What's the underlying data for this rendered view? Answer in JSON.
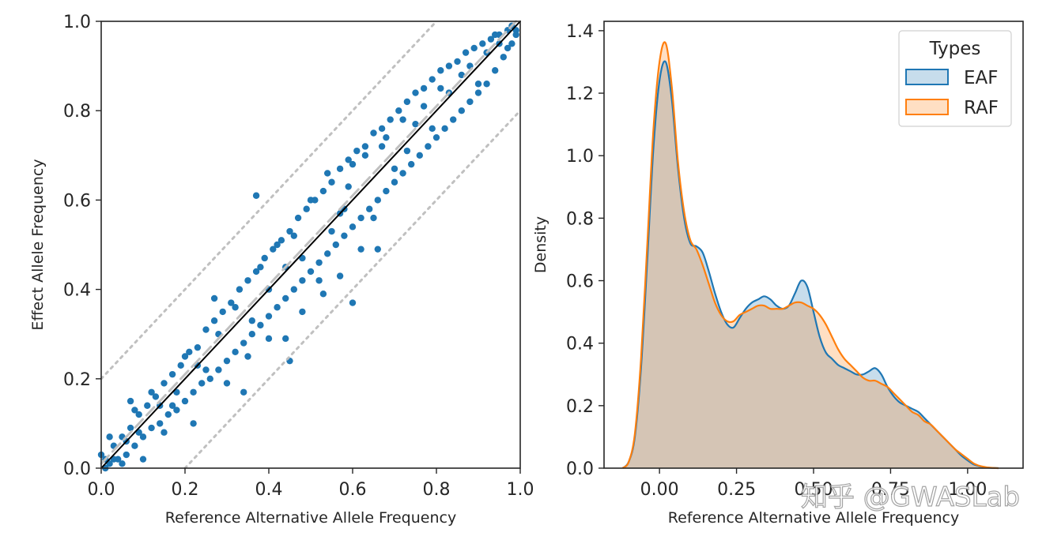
{
  "watermark": "知乎 @GWASLab",
  "colors": {
    "eaf": "#1f77b4",
    "raf": "#ff7f0e",
    "overlap": "#c3c0b9"
  },
  "chart_data": [
    {
      "type": "scatter",
      "xlabel": "Reference Alternative Allele Frequency",
      "ylabel": "Effect Allele Frequency",
      "xlim": [
        0,
        1
      ],
      "ylim": [
        0,
        1
      ],
      "xticks": [
        "0.0",
        "0.2",
        "0.4",
        "0.6",
        "0.8",
        "1.0"
      ],
      "yticks": [
        "0.0",
        "0.2",
        "0.4",
        "0.6",
        "0.8",
        "1.0"
      ],
      "grid": false,
      "reference_lines": [
        {
          "kind": "identity",
          "slope": 1,
          "intercept": 0,
          "style": "solid",
          "color": "#000000"
        },
        {
          "kind": "fit",
          "slope": 1,
          "intercept": 0.01,
          "style": "dashed",
          "color": "#c0c0c0"
        },
        {
          "kind": "upper-bound",
          "slope": 1,
          "intercept": 0.2,
          "style": "dotted",
          "color": "#c0c0c0"
        },
        {
          "kind": "lower-bound",
          "slope": 1,
          "intercept": -0.2,
          "style": "dotted",
          "color": "#c0c0c0"
        }
      ],
      "points": [
        [
          0.01,
          0.02
        ],
        [
          0.02,
          0.01
        ],
        [
          0.03,
          0.05
        ],
        [
          0.04,
          0.02
        ],
        [
          0.05,
          0.07
        ],
        [
          0.06,
          0.03
        ],
        [
          0.07,
          0.09
        ],
        [
          0.08,
          0.05
        ],
        [
          0.09,
          0.12
        ],
        [
          0.1,
          0.07
        ],
        [
          0.11,
          0.14
        ],
        [
          0.12,
          0.09
        ],
        [
          0.13,
          0.16
        ],
        [
          0.14,
          0.1
        ],
        [
          0.15,
          0.19
        ],
        [
          0.16,
          0.12
        ],
        [
          0.17,
          0.21
        ],
        [
          0.18,
          0.13
        ],
        [
          0.19,
          0.23
        ],
        [
          0.2,
          0.15
        ],
        [
          0.21,
          0.26
        ],
        [
          0.22,
          0.17
        ],
        [
          0.23,
          0.27
        ],
        [
          0.24,
          0.19
        ],
        [
          0.25,
          0.31
        ],
        [
          0.26,
          0.2
        ],
        [
          0.27,
          0.33
        ],
        [
          0.28,
          0.22
        ],
        [
          0.29,
          0.35
        ],
        [
          0.3,
          0.24
        ],
        [
          0.31,
          0.37
        ],
        [
          0.32,
          0.26
        ],
        [
          0.33,
          0.4
        ],
        [
          0.34,
          0.28
        ],
        [
          0.35,
          0.42
        ],
        [
          0.36,
          0.3
        ],
        [
          0.37,
          0.44
        ],
        [
          0.38,
          0.32
        ],
        [
          0.39,
          0.47
        ],
        [
          0.4,
          0.34
        ],
        [
          0.41,
          0.49
        ],
        [
          0.42,
          0.36
        ],
        [
          0.43,
          0.51
        ],
        [
          0.44,
          0.38
        ],
        [
          0.45,
          0.53
        ],
        [
          0.46,
          0.4
        ],
        [
          0.47,
          0.56
        ],
        [
          0.48,
          0.42
        ],
        [
          0.49,
          0.58
        ],
        [
          0.5,
          0.44
        ],
        [
          0.51,
          0.6
        ],
        [
          0.52,
          0.46
        ],
        [
          0.53,
          0.62
        ],
        [
          0.54,
          0.48
        ],
        [
          0.55,
          0.64
        ],
        [
          0.56,
          0.5
        ],
        [
          0.57,
          0.67
        ],
        [
          0.58,
          0.52
        ],
        [
          0.59,
          0.69
        ],
        [
          0.6,
          0.54
        ],
        [
          0.61,
          0.71
        ],
        [
          0.62,
          0.56
        ],
        [
          0.63,
          0.72
        ],
        [
          0.64,
          0.58
        ],
        [
          0.65,
          0.75
        ],
        [
          0.66,
          0.6
        ],
        [
          0.67,
          0.76
        ],
        [
          0.68,
          0.62
        ],
        [
          0.69,
          0.78
        ],
        [
          0.7,
          0.64
        ],
        [
          0.71,
          0.8
        ],
        [
          0.72,
          0.66
        ],
        [
          0.73,
          0.82
        ],
        [
          0.74,
          0.68
        ],
        [
          0.75,
          0.84
        ],
        [
          0.76,
          0.7
        ],
        [
          0.77,
          0.85
        ],
        [
          0.78,
          0.72
        ],
        [
          0.79,
          0.87
        ],
        [
          0.8,
          0.74
        ],
        [
          0.81,
          0.89
        ],
        [
          0.82,
          0.76
        ],
        [
          0.83,
          0.9
        ],
        [
          0.84,
          0.78
        ],
        [
          0.85,
          0.91
        ],
        [
          0.86,
          0.8
        ],
        [
          0.87,
          0.93
        ],
        [
          0.88,
          0.82
        ],
        [
          0.89,
          0.94
        ],
        [
          0.9,
          0.84
        ],
        [
          0.91,
          0.95
        ],
        [
          0.92,
          0.86
        ],
        [
          0.93,
          0.96
        ],
        [
          0.94,
          0.89
        ],
        [
          0.95,
          0.97
        ],
        [
          0.96,
          0.92
        ],
        [
          0.97,
          0.98
        ],
        [
          0.98,
          0.95
        ],
        [
          0.99,
          0.98
        ],
        [
          0.94,
          0.97
        ],
        [
          0.02,
          0.07
        ],
        [
          0.05,
          0.01
        ],
        [
          0.08,
          0.13
        ],
        [
          0.1,
          0.02
        ],
        [
          0.12,
          0.17
        ],
        [
          0.15,
          0.08
        ],
        [
          0.17,
          0.14
        ],
        [
          0.2,
          0.25
        ],
        [
          0.22,
          0.1
        ],
        [
          0.25,
          0.22
        ],
        [
          0.27,
          0.38
        ],
        [
          0.3,
          0.19
        ],
        [
          0.32,
          0.36
        ],
        [
          0.35,
          0.25
        ],
        [
          0.37,
          0.61
        ],
        [
          0.38,
          0.45
        ],
        [
          0.4,
          0.29
        ],
        [
          0.42,
          0.5
        ],
        [
          0.44,
          0.45
        ],
        [
          0.46,
          0.52
        ],
        [
          0.48,
          0.47
        ],
        [
          0.5,
          0.6
        ],
        [
          0.52,
          0.42
        ],
        [
          0.54,
          0.66
        ],
        [
          0.55,
          0.53
        ],
        [
          0.57,
          0.57
        ],
        [
          0.59,
          0.63
        ],
        [
          0.6,
          0.68
        ],
        [
          0.62,
          0.49
        ],
        [
          0.63,
          0.7
        ],
        [
          0.65,
          0.56
        ],
        [
          0.67,
          0.72
        ],
        [
          0.68,
          0.74
        ],
        [
          0.7,
          0.67
        ],
        [
          0.72,
          0.78
        ],
        [
          0.73,
          0.71
        ],
        [
          0.75,
          0.77
        ],
        [
          0.77,
          0.81
        ],
        [
          0.79,
          0.76
        ],
        [
          0.81,
          0.85
        ],
        [
          0.83,
          0.84
        ],
        [
          0.86,
          0.88
        ],
        [
          0.88,
          0.9
        ],
        [
          0.9,
          0.86
        ],
        [
          0.92,
          0.93
        ],
        [
          0.95,
          0.95
        ],
        [
          0.97,
          0.94
        ],
        [
          0.98,
          0.99
        ],
        [
          0.99,
          0.97
        ],
        [
          0.4,
          0.4
        ],
        [
          0.36,
          0.33
        ],
        [
          0.44,
          0.29
        ],
        [
          0.57,
          0.43
        ],
        [
          0.6,
          0.37
        ],
        [
          0.48,
          0.35
        ],
        [
          0.53,
          0.39
        ],
        [
          0.66,
          0.49
        ],
        [
          0.45,
          0.24
        ],
        [
          0.34,
          0.17
        ],
        [
          0.58,
          0.58
        ],
        [
          0.28,
          0.3
        ],
        [
          0.23,
          0.23
        ],
        [
          0.18,
          0.17
        ],
        [
          0.14,
          0.14
        ],
        [
          0.09,
          0.08
        ],
        [
          0.06,
          0.06
        ],
        [
          0.03,
          0.02
        ],
        [
          0.01,
          0.0
        ],
        [
          0.0,
          0.03
        ],
        [
          0.07,
          0.15
        ]
      ]
    },
    {
      "type": "area",
      "xlabel": "Reference Alternative Allele Frequency",
      "ylabel": "Density",
      "xlim": [
        -0.18,
        1.18
      ],
      "ylim": [
        0,
        1.43
      ],
      "xticks": [
        "0.00",
        "0.25",
        "0.50",
        "0.75",
        "1.00"
      ],
      "xtick_values": [
        0,
        0.25,
        0.5,
        0.75,
        1.0
      ],
      "yticks": [
        "0.0",
        "0.2",
        "0.4",
        "0.6",
        "0.8",
        "1.0",
        "1.2",
        "1.4"
      ],
      "ytick_values": [
        0,
        0.2,
        0.4,
        0.6,
        0.8,
        1.0,
        1.2,
        1.4
      ],
      "grid": false,
      "legend": {
        "title": "Types",
        "placement": "top-right"
      },
      "series": [
        {
          "name": "EAF",
          "x": [
            -0.12,
            -0.1,
            -0.08,
            -0.06,
            -0.04,
            -0.02,
            0.0,
            0.02,
            0.04,
            0.06,
            0.08,
            0.1,
            0.12,
            0.14,
            0.16,
            0.18,
            0.2,
            0.22,
            0.24,
            0.26,
            0.28,
            0.3,
            0.32,
            0.34,
            0.36,
            0.38,
            0.4,
            0.42,
            0.44,
            0.46,
            0.48,
            0.5,
            0.52,
            0.54,
            0.56,
            0.58,
            0.6,
            0.62,
            0.64,
            0.66,
            0.68,
            0.7,
            0.72,
            0.74,
            0.76,
            0.78,
            0.8,
            0.82,
            0.84,
            0.86,
            0.88,
            0.9,
            0.92,
            0.94,
            0.96,
            0.98,
            1.0,
            1.02,
            1.04,
            1.06,
            1.08,
            1.1
          ],
          "values": [
            0.0,
            0.02,
            0.1,
            0.32,
            0.66,
            1.02,
            1.24,
            1.3,
            1.18,
            0.96,
            0.8,
            0.72,
            0.71,
            0.69,
            0.63,
            0.56,
            0.5,
            0.46,
            0.45,
            0.48,
            0.51,
            0.53,
            0.54,
            0.55,
            0.54,
            0.52,
            0.51,
            0.52,
            0.56,
            0.6,
            0.58,
            0.5,
            0.42,
            0.37,
            0.35,
            0.33,
            0.32,
            0.31,
            0.3,
            0.3,
            0.31,
            0.32,
            0.3,
            0.26,
            0.23,
            0.21,
            0.2,
            0.19,
            0.18,
            0.16,
            0.14,
            0.12,
            0.1,
            0.08,
            0.06,
            0.04,
            0.025,
            0.012,
            0.006,
            0.002,
            0.001,
            0.0
          ]
        },
        {
          "name": "RAF",
          "x": [
            -0.12,
            -0.1,
            -0.08,
            -0.06,
            -0.04,
            -0.02,
            0.0,
            0.02,
            0.04,
            0.06,
            0.08,
            0.1,
            0.12,
            0.14,
            0.16,
            0.18,
            0.2,
            0.22,
            0.24,
            0.26,
            0.28,
            0.3,
            0.32,
            0.34,
            0.36,
            0.38,
            0.4,
            0.42,
            0.44,
            0.46,
            0.48,
            0.5,
            0.52,
            0.54,
            0.56,
            0.58,
            0.6,
            0.62,
            0.64,
            0.66,
            0.68,
            0.7,
            0.72,
            0.74,
            0.76,
            0.78,
            0.8,
            0.82,
            0.84,
            0.86,
            0.88,
            0.9,
            0.92,
            0.94,
            0.96,
            0.98,
            1.0,
            1.02,
            1.04,
            1.06,
            1.08,
            1.1
          ],
          "values": [
            0.0,
            0.02,
            0.11,
            0.35,
            0.71,
            1.08,
            1.3,
            1.36,
            1.22,
            0.98,
            0.82,
            0.73,
            0.7,
            0.65,
            0.59,
            0.53,
            0.49,
            0.47,
            0.47,
            0.49,
            0.5,
            0.51,
            0.52,
            0.52,
            0.51,
            0.51,
            0.51,
            0.52,
            0.53,
            0.53,
            0.52,
            0.51,
            0.49,
            0.46,
            0.42,
            0.38,
            0.35,
            0.33,
            0.31,
            0.29,
            0.28,
            0.28,
            0.27,
            0.26,
            0.24,
            0.22,
            0.2,
            0.18,
            0.17,
            0.15,
            0.14,
            0.12,
            0.1,
            0.08,
            0.06,
            0.045,
            0.03,
            0.015,
            0.007,
            0.003,
            0.001,
            0.0
          ]
        }
      ]
    }
  ]
}
